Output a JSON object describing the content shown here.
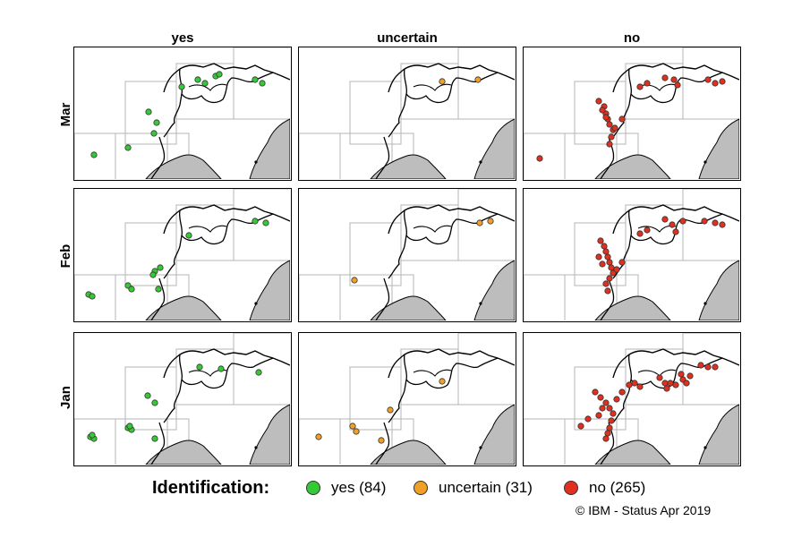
{
  "columns": {
    "yes": "yes",
    "uncertain": "uncertain",
    "no": "no"
  },
  "rows": {
    "mar": "Mar",
    "feb": "Feb",
    "jan": "Jan"
  },
  "legend": {
    "title": "Identification:",
    "yes": "yes (84)",
    "uncertain": "uncertain (31)",
    "no": "no (265)"
  },
  "credit": "© IBM - Status Apr 2019",
  "colors": {
    "yes": "#35c935",
    "uncertain": "#f0a028",
    "no": "#e03020",
    "sea": "#bdbdbd",
    "grid": "#b5b5b5"
  },
  "chart_data": {
    "type": "scatter",
    "facets": {
      "rows": [
        "Mar",
        "Feb",
        "Jan"
      ],
      "columns": [
        "yes",
        "uncertain",
        "no"
      ]
    },
    "legend_title": "Identification:",
    "categories": [
      "yes",
      "uncertain",
      "no"
    ],
    "counts": {
      "yes": 84,
      "uncertain": 31,
      "no": 265
    }
  }
}
